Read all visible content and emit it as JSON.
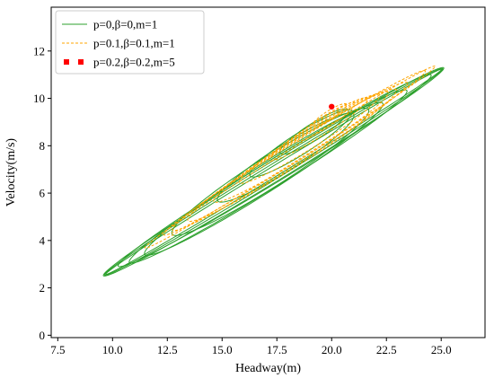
{
  "chart_data": {
    "type": "line",
    "title": "",
    "xlabel": "Headway(m)",
    "ylabel": "Velocity(m/s)",
    "xlim": [
      7.2,
      27.0
    ],
    "ylim": [
      -0.1,
      13.85
    ],
    "xticks": [
      7.5,
      10.0,
      12.5,
      15.0,
      17.5,
      20.0,
      22.5,
      25.0
    ],
    "xtick_labels": [
      "7.5",
      "10.0",
      "12.5",
      "15.0",
      "17.5",
      "20.0",
      "22.5",
      "25.0"
    ],
    "yticks": [
      0,
      2,
      4,
      6,
      8,
      10,
      12
    ],
    "ytick_labels": [
      "0",
      "2",
      "4",
      "6",
      "8",
      "10",
      "12"
    ],
    "grid": false,
    "legend_position": "top-left",
    "series": [
      {
        "name": "p=0,β=0,m=1",
        "style": "solid",
        "marker": "none",
        "color": "#2ca02c",
        "loops": [
          {
            "cx": 17.35,
            "cy": 6.9,
            "a": 8.92,
            "b": 0.42,
            "angle": 0.514
          },
          {
            "cx": 17.35,
            "cy": 6.9,
            "a": 8.86,
            "b": 0.32,
            "angle": 0.514
          },
          {
            "cx": 17.35,
            "cy": 6.9,
            "a": 8.8,
            "b": 0.22,
            "angle": 0.514
          },
          {
            "cx": 17.4,
            "cy": 6.95,
            "a": 8.2,
            "b": 0.48,
            "angle": 0.514
          },
          {
            "cx": 17.1,
            "cy": 6.7,
            "a": 7.3,
            "b": 0.55,
            "angle": 0.52
          },
          {
            "cx": 16.9,
            "cy": 6.6,
            "a": 6.3,
            "b": 0.6,
            "angle": 0.53
          },
          {
            "cx": 17.2,
            "cy": 6.9,
            "a": 5.2,
            "b": 0.65,
            "angle": 0.53
          },
          {
            "cx": 17.9,
            "cy": 7.5,
            "a": 3.6,
            "b": 0.55,
            "angle": 0.53
          },
          {
            "cx": 18.6,
            "cy": 8.1,
            "a": 2.7,
            "b": 0.45,
            "angle": 0.53
          },
          {
            "cx": 19.2,
            "cy": 8.6,
            "a": 1.8,
            "b": 0.35,
            "angle": 0.53
          }
        ]
      },
      {
        "name": "p=0.1,β=0.1,m=1",
        "style": "dashed",
        "marker": "none",
        "color": "#ffa500",
        "loops": [
          {
            "cx": 18.1,
            "cy": 7.52,
            "a": 7.65,
            "b": 0.28,
            "angle": 0.525
          },
          {
            "cx": 18.3,
            "cy": 7.7,
            "a": 6.9,
            "b": 0.38,
            "angle": 0.525
          },
          {
            "cx": 18.1,
            "cy": 7.55,
            "a": 6.2,
            "b": 0.45,
            "angle": 0.525
          },
          {
            "cx": 18.2,
            "cy": 7.6,
            "a": 5.5,
            "b": 0.5,
            "angle": 0.525
          },
          {
            "cx": 18.6,
            "cy": 7.95,
            "a": 4.6,
            "b": 0.45,
            "angle": 0.525
          },
          {
            "cx": 19.0,
            "cy": 8.3,
            "a": 3.7,
            "b": 0.4,
            "angle": 0.525
          },
          {
            "cx": 19.4,
            "cy": 8.7,
            "a": 2.6,
            "b": 0.32,
            "angle": 0.525
          },
          {
            "cx": 19.7,
            "cy": 9.0,
            "a": 1.6,
            "b": 0.25,
            "angle": 0.525
          },
          {
            "cx": 19.9,
            "cy": 9.3,
            "a": 0.9,
            "b": 0.18,
            "angle": 0.525
          }
        ]
      },
      {
        "name": "p=0.2,β=0.2,m=5",
        "style": "none",
        "marker": "square",
        "color": "#ff0000",
        "points": [
          {
            "x": 20.0,
            "y": 9.65
          }
        ]
      }
    ]
  }
}
